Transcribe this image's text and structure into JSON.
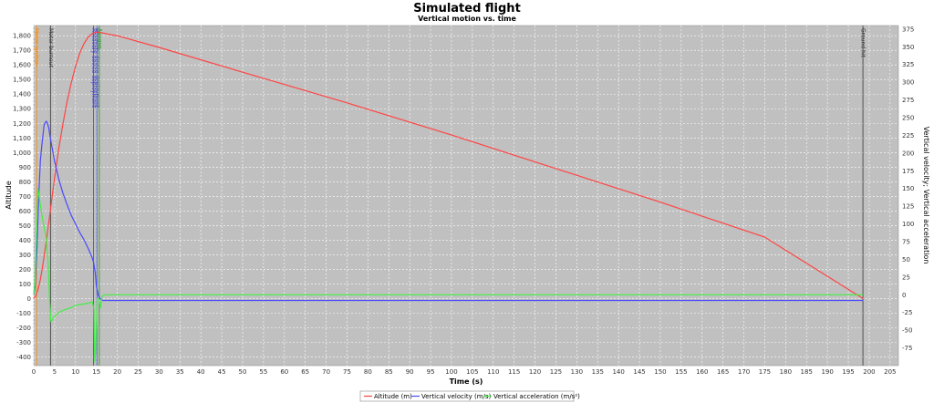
{
  "chart_data": {
    "type": "line",
    "title": "Simulated flight",
    "subtitle": "Vertical motion vs. time",
    "xlabel": "Time (s)",
    "ylabel_left": "Altitude",
    "ylabel_right": "Vertical velocity; Vertical acceleration",
    "xlim": [
      0,
      207
    ],
    "ylim_left": [
      -460,
      1870
    ],
    "ylim_right": [
      -100,
      380
    ],
    "x_ticks": [
      0,
      5,
      10,
      15,
      20,
      25,
      30,
      35,
      40,
      45,
      50,
      55,
      60,
      65,
      70,
      75,
      80,
      85,
      90,
      95,
      100,
      105,
      110,
      115,
      120,
      125,
      130,
      135,
      140,
      145,
      150,
      155,
      160,
      165,
      170,
      175,
      180,
      185,
      190,
      195,
      200,
      205
    ],
    "y_left_ticks": [
      -400,
      -300,
      -200,
      -100,
      0,
      100,
      200,
      300,
      400,
      500,
      600,
      700,
      800,
      900,
      1000,
      1100,
      1200,
      1300,
      1400,
      1500,
      1600,
      1700,
      1800
    ],
    "y_left_tick_labels": [
      "-400",
      "-300",
      "-200",
      "-100",
      "0",
      "100",
      "200",
      "300",
      "400",
      "500",
      "600",
      "700",
      "800",
      "900",
      "1,000",
      "1,100",
      "1,200",
      "1,300",
      "1,400",
      "1,500",
      "1,600",
      "1,700",
      "1,800"
    ],
    "y_right_ticks": [
      -75,
      -50,
      -25,
      0,
      25,
      50,
      75,
      100,
      125,
      150,
      175,
      200,
      225,
      250,
      275,
      300,
      325,
      350,
      375
    ],
    "grid": true,
    "legend_position": "bottom",
    "colors": {
      "altitude": "#ff4444",
      "velocity": "#4a4aff",
      "acceleration": "#44ee44",
      "plot_bg": "#c0c0c0",
      "grid": "#ffffff"
    },
    "series": [
      {
        "name": "Altitude (m)",
        "axis": "left",
        "color": "#ff4444",
        "x": [
          0,
          0.5,
          1,
          1.5,
          2,
          2.5,
          3,
          3.5,
          4,
          5,
          6,
          7,
          8,
          9,
          10,
          11,
          12,
          13,
          14,
          15,
          15.5,
          16,
          17,
          18,
          20,
          30,
          50,
          75,
          100,
          125,
          150,
          175,
          198.5
        ],
        "y": [
          0,
          20,
          60,
          120,
          200,
          290,
          390,
          500,
          610,
          830,
          1030,
          1200,
          1350,
          1480,
          1590,
          1680,
          1745,
          1790,
          1815,
          1825,
          1824,
          1822,
          1816,
          1810,
          1800,
          1720,
          1550,
          1340,
          1120,
          890,
          660,
          420,
          0
        ]
      },
      {
        "name": "Vertical velocity (m/s)",
        "axis": "right",
        "color": "#4a4aff",
        "x": [
          0,
          0.3,
          0.8,
          1.2,
          1.6,
          2,
          2.5,
          3,
          3.3,
          3.6,
          4,
          5,
          6,
          7,
          8,
          9,
          10,
          11,
          12,
          13,
          14,
          14.3,
          14.7,
          15,
          15.5,
          16,
          16.5,
          17,
          20,
          50,
          100,
          150,
          198.5
        ],
        "y": [
          0,
          10,
          70,
          140,
          190,
          215,
          240,
          245,
          242,
          235,
          220,
          188,
          163,
          143,
          127,
          112,
          100,
          88,
          78,
          66,
          52,
          46,
          32,
          12,
          -2,
          -6,
          -8,
          -8,
          -8,
          -8,
          -8,
          -8,
          -8
        ]
      },
      {
        "name": "Vertical acceleration (m/s²)",
        "axis": "right",
        "color": "#44ee44",
        "x": [
          0,
          0.3,
          1,
          2,
          3,
          3.5,
          3.8,
          4.1,
          4.5,
          5,
          6,
          7,
          8,
          9,
          10,
          11,
          12,
          13,
          14,
          14.4,
          14.6,
          14.8,
          15.2,
          15.6,
          16,
          16.3,
          16.6,
          17,
          18,
          20,
          50,
          100,
          150,
          198.5
        ],
        "y": [
          0,
          20,
          150,
          110,
          80,
          40,
          -10,
          -38,
          -35,
          -30,
          -25,
          -22,
          -20,
          -18,
          -15,
          -14,
          -13,
          -12,
          -10,
          -20,
          -95,
          -80,
          -6,
          -5,
          -18,
          -3,
          -1,
          0,
          0,
          0,
          0,
          0,
          0,
          0
        ]
      }
    ],
    "events": [
      {
        "t": 0.7,
        "label": "Motor ignition",
        "color": "#ff8800"
      },
      {
        "t": 4.0,
        "label": "Motor burnout",
        "color": "#333333"
      },
      {
        "t": 14.3,
        "label": "Recovery device deployment",
        "color": "#4444cc"
      },
      {
        "t": 15.1,
        "label": "Recovery device deployment",
        "color": "#4444cc"
      },
      {
        "t": 15.7,
        "label": "Apogee",
        "color": "#229922"
      },
      {
        "t": 198.5,
        "label": "Ground hit",
        "color": "#333333"
      }
    ]
  }
}
